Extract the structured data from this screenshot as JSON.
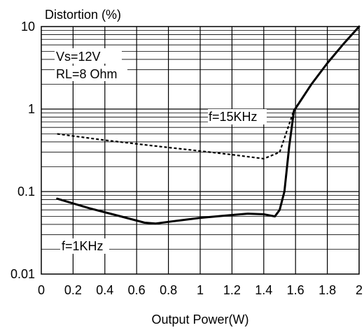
{
  "chart_data": {
    "type": "line",
    "ylabel": "Distortion (%)",
    "xlabel": "Output Power(W)",
    "xlim": [
      0,
      2
    ],
    "ylim": [
      0.01,
      10
    ],
    "yscale": "log",
    "grid": true,
    "x_ticks": [
      "0",
      "0.2",
      "0.4",
      "0.6",
      "0.8",
      "1",
      "1.2",
      "1.4",
      "1.6",
      "1.8",
      "2"
    ],
    "y_ticks": [
      "0.01",
      "0.1",
      "1",
      "10"
    ],
    "conditions": [
      "Vs=12V",
      "RL=8 Ohm"
    ],
    "series": [
      {
        "name": "f=1KHz",
        "style": "solid",
        "color": "#000000",
        "x": [
          0.1,
          0.3,
          0.5,
          0.65,
          0.72,
          0.8,
          1.0,
          1.2,
          1.3,
          1.4,
          1.47,
          1.5,
          1.53,
          1.56,
          1.59,
          1.7,
          1.8,
          1.9,
          2.0
        ],
        "y": [
          0.082,
          0.063,
          0.05,
          0.042,
          0.041,
          0.043,
          0.048,
          0.052,
          0.054,
          0.053,
          0.05,
          0.06,
          0.1,
          0.35,
          0.95,
          2.0,
          3.6,
          6.1,
          10.0
        ]
      },
      {
        "name": "f=15KHz",
        "style": "dashed",
        "color": "#000000",
        "x": [
          0.1,
          0.4,
          0.7,
          1.0,
          1.2,
          1.4,
          1.5,
          1.59,
          1.7,
          1.8,
          1.9,
          2.0
        ],
        "y": [
          0.5,
          0.42,
          0.36,
          0.31,
          0.28,
          0.25,
          0.3,
          0.97,
          2.0,
          3.6,
          6.1,
          10.0
        ]
      }
    ]
  }
}
